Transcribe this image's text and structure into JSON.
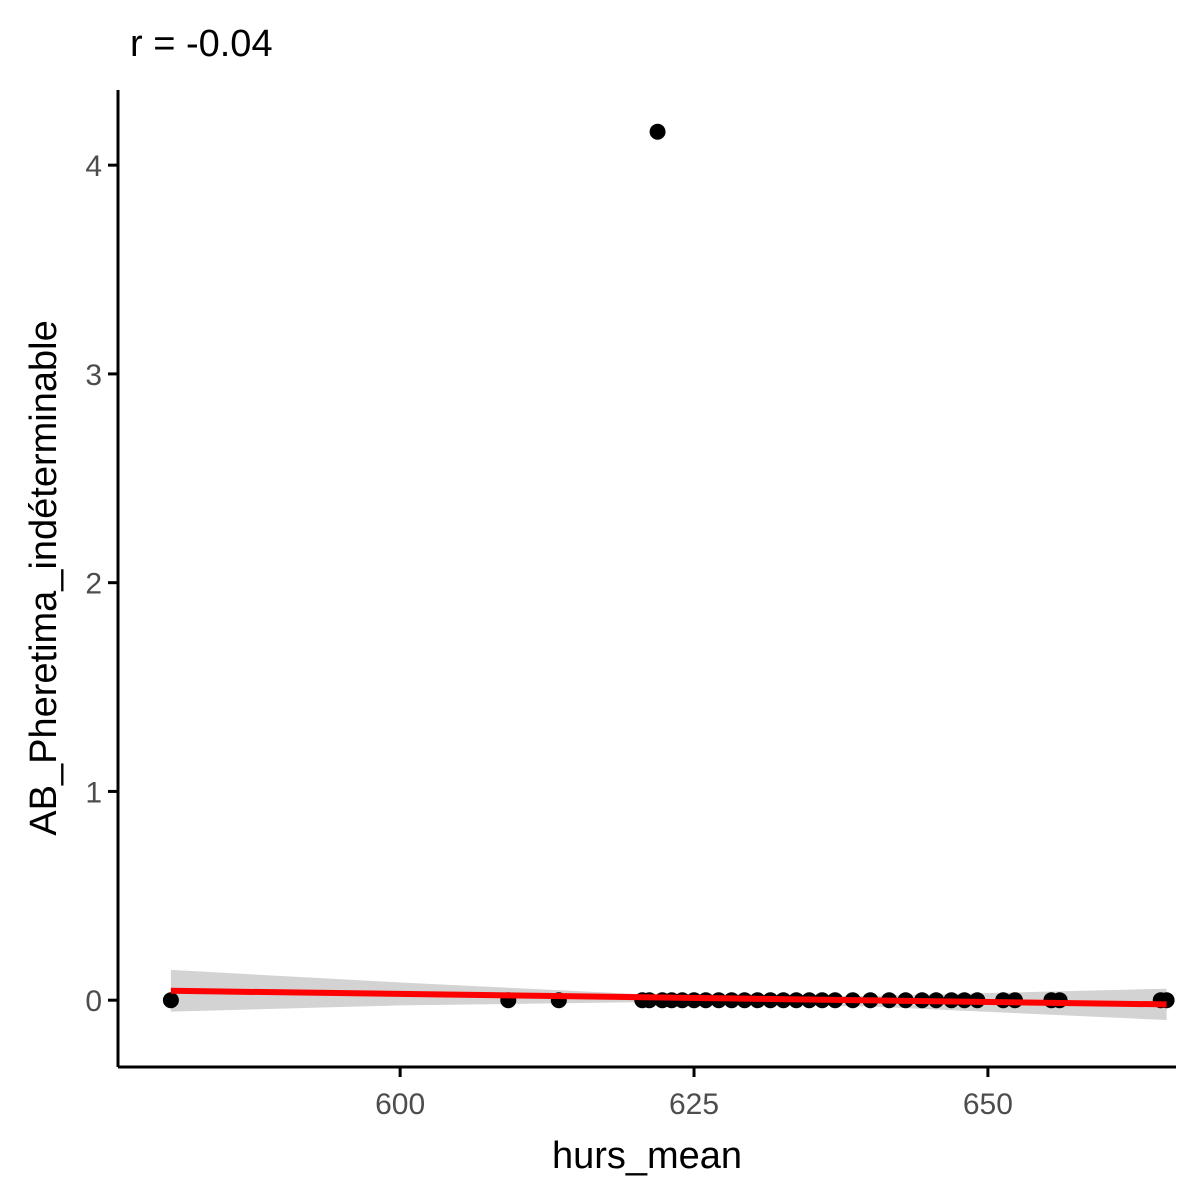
{
  "chart_data": {
    "type": "scatter",
    "title": "r = -0.04",
    "xlabel": "hurs_mean",
    "ylabel": "AB_Pheretima_indéterminable",
    "xlim": [
      576,
      666
    ],
    "ylim": [
      -0.32,
      4.36
    ],
    "x_ticks": [
      600,
      625,
      650
    ],
    "x_tick_labels": [
      "600",
      "625",
      "650"
    ],
    "y_ticks": [
      0,
      1,
      2,
      3,
      4
    ],
    "y_tick_labels": [
      "0",
      "1",
      "2",
      "3",
      "4"
    ],
    "grid": false,
    "legend": "none",
    "points": [
      {
        "x": 580.5,
        "y": 0
      },
      {
        "x": 609.2,
        "y": 0
      },
      {
        "x": 613.5,
        "y": 0
      },
      {
        "x": 620.6,
        "y": 0
      },
      {
        "x": 621.2,
        "y": 0
      },
      {
        "x": 621.9,
        "y": 4.16
      },
      {
        "x": 622.3,
        "y": 0
      },
      {
        "x": 623.1,
        "y": 0
      },
      {
        "x": 624.0,
        "y": 0
      },
      {
        "x": 625.0,
        "y": 0
      },
      {
        "x": 626.0,
        "y": 0
      },
      {
        "x": 627.1,
        "y": 0
      },
      {
        "x": 628.2,
        "y": 0
      },
      {
        "x": 629.3,
        "y": 0
      },
      {
        "x": 630.4,
        "y": 0
      },
      {
        "x": 631.5,
        "y": 0
      },
      {
        "x": 632.6,
        "y": 0
      },
      {
        "x": 633.7,
        "y": 0
      },
      {
        "x": 634.8,
        "y": 0
      },
      {
        "x": 635.9,
        "y": 0
      },
      {
        "x": 637.0,
        "y": 0
      },
      {
        "x": 638.5,
        "y": 0
      },
      {
        "x": 640.0,
        "y": 0
      },
      {
        "x": 641.6,
        "y": 0
      },
      {
        "x": 643.0,
        "y": 0
      },
      {
        "x": 644.4,
        "y": 0
      },
      {
        "x": 645.6,
        "y": 0
      },
      {
        "x": 646.9,
        "y": 0
      },
      {
        "x": 648.0,
        "y": 0
      },
      {
        "x": 649.1,
        "y": 0
      },
      {
        "x": 651.3,
        "y": 0
      },
      {
        "x": 652.3,
        "y": 0
      },
      {
        "x": 655.4,
        "y": 0
      },
      {
        "x": 656.1,
        "y": 0
      },
      {
        "x": 664.7,
        "y": 0
      },
      {
        "x": 665.2,
        "y": 0
      }
    ],
    "fit_line": {
      "x": [
        580.5,
        665.2
      ],
      "y": [
        0.045,
        -0.02
      ]
    },
    "confidence_band": {
      "x": [
        580.5,
        600,
        620,
        625,
        640,
        665.2
      ],
      "lower": [
        -0.055,
        -0.025,
        -0.01,
        -0.012,
        -0.03,
        -0.095
      ],
      "upper": [
        0.145,
        0.085,
        0.03,
        0.028,
        0.02,
        0.055
      ]
    },
    "colors": {
      "points": "#000000",
      "fit_line": "#ff0000",
      "band": "#d3d3d3",
      "axis": "#000000",
      "tick_text": "#4d4d4d"
    }
  }
}
